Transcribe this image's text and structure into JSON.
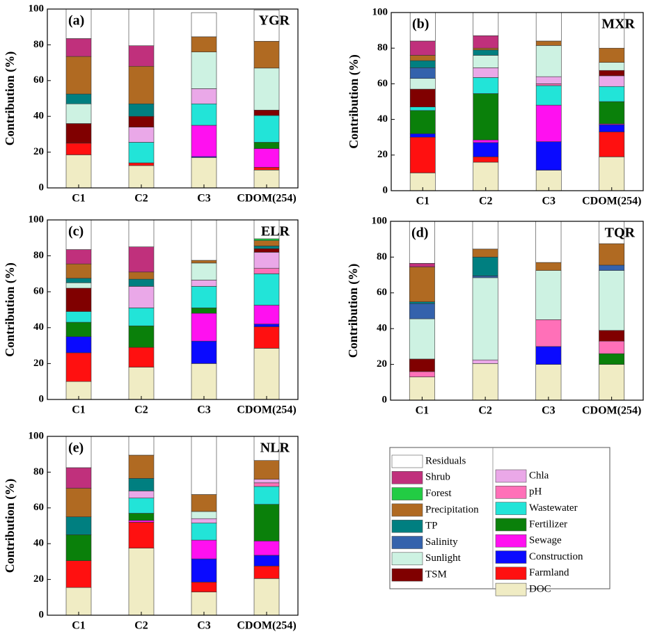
{
  "chart_data": [
    {
      "type": "bar",
      "stacked": true,
      "label": "(a)",
      "title": "YGR",
      "ylabel": "Contribution (%)",
      "categories": [
        "C1",
        "C2",
        "C3",
        "CDOM(254)"
      ],
      "ylim": [
        0,
        100
      ],
      "yticks": [
        0,
        20,
        40,
        60,
        80,
        100
      ],
      "series": [
        {
          "values": [
            18.5,
            12.5,
            17,
            10
          ]
        },
        {
          "values": [
            6.5,
            1.5,
            0,
            1.5
          ]
        },
        {
          "values": [
            0,
            0,
            0.5,
            0
          ]
        },
        {
          "values": [
            0,
            0,
            17.5,
            10.5
          ]
        },
        {
          "values": [
            0,
            0,
            0,
            3.5
          ]
        },
        {
          "values": [
            0,
            11.5,
            12,
            15
          ]
        },
        {
          "values": [
            0,
            0,
            0,
            0
          ]
        },
        {
          "values": [
            0,
            8.5,
            8.5,
            0
          ]
        },
        {
          "values": [
            11,
            6,
            0,
            3
          ]
        },
        {
          "values": [
            11,
            0,
            20.5,
            23.5
          ]
        },
        {
          "values": [
            0,
            0,
            0,
            0
          ]
        },
        {
          "values": [
            5.5,
            7,
            0,
            0
          ]
        },
        {
          "values": [
            21,
            21,
            8.5,
            15
          ]
        },
        {
          "values": [
            0,
            0,
            0,
            0
          ]
        },
        {
          "values": [
            10,
            11.5,
            0,
            0
          ]
        },
        {
          "values": [
            16.5,
            20.5,
            13.5,
            17.5
          ]
        }
      ]
    },
    {
      "type": "bar",
      "stacked": true,
      "label": "(b)",
      "title": "MXR",
      "ylabel": "Contribution (%)",
      "categories": [
        "C1",
        "C2",
        "C3",
        "CDOM(254)"
      ],
      "ylim": [
        0,
        100
      ],
      "yticks": [
        0,
        20,
        40,
        60,
        80,
        100
      ],
      "series": [
        {
          "values": [
            10,
            16,
            11.5,
            19
          ]
        },
        {
          "values": [
            20,
            3,
            0,
            14
          ]
        },
        {
          "values": [
            2,
            8,
            16,
            4
          ]
        },
        {
          "values": [
            0,
            1.5,
            20.5,
            0.5
          ]
        },
        {
          "values": [
            13,
            26,
            0,
            12.5
          ]
        },
        {
          "values": [
            2,
            9,
            11,
            8.5
          ]
        },
        {
          "values": [
            0,
            0,
            1,
            0
          ]
        },
        {
          "values": [
            0,
            5.5,
            4,
            6
          ]
        },
        {
          "values": [
            10,
            0,
            0,
            3
          ]
        },
        {
          "values": [
            6,
            7,
            17.5,
            4.5
          ]
        },
        {
          "values": [
            6,
            0,
            0,
            0
          ]
        },
        {
          "values": [
            4,
            3,
            0,
            0
          ]
        },
        {
          "values": [
            3,
            1,
            2.5,
            8
          ]
        },
        {
          "values": [
            0,
            0,
            0,
            0
          ]
        },
        {
          "values": [
            8,
            7,
            0,
            0
          ]
        },
        {
          "values": [
            16,
            13,
            16,
            20
          ]
        }
      ]
    },
    {
      "type": "bar",
      "stacked": true,
      "label": "(c)",
      "title": "ELR",
      "ylabel": "Contribution (%)",
      "categories": [
        "C1",
        "C2",
        "C3",
        "CDOM(254)"
      ],
      "ylim": [
        0,
        100
      ],
      "yticks": [
        0,
        20,
        40,
        60,
        80,
        100
      ],
      "series": [
        {
          "values": [
            10,
            18,
            20,
            28.5
          ]
        },
        {
          "values": [
            16,
            11,
            0,
            12
          ]
        },
        {
          "values": [
            9,
            0,
            12.5,
            1.5
          ]
        },
        {
          "values": [
            0,
            0,
            15.5,
            10.5
          ]
        },
        {
          "values": [
            8,
            12,
            3,
            0
          ]
        },
        {
          "values": [
            6,
            10,
            12,
            17.5
          ]
        },
        {
          "values": [
            0,
            0,
            0,
            3
          ]
        },
        {
          "values": [
            0,
            12,
            3.5,
            9
          ]
        },
        {
          "values": [
            13,
            0,
            0,
            2
          ]
        },
        {
          "values": [
            3,
            0,
            9.5,
            0
          ]
        },
        {
          "values": [
            0,
            0,
            0,
            0
          ]
        },
        {
          "values": [
            2.5,
            4,
            0,
            1.5
          ]
        },
        {
          "values": [
            8,
            4,
            1.5,
            3
          ]
        },
        {
          "values": [
            0,
            0,
            0,
            1
          ]
        },
        {
          "values": [
            8,
            14,
            0,
            0
          ]
        },
        {
          "values": [
            16.5,
            15,
            22.5,
            10.5
          ]
        }
      ]
    },
    {
      "type": "bar",
      "stacked": true,
      "label": "(d)",
      "title": "TQR",
      "ylabel": "Contribution (%)",
      "categories": [
        "C1",
        "C2",
        "C3",
        "CDOM(254)"
      ],
      "ylim": [
        0,
        100
      ],
      "yticks": [
        0,
        20,
        40,
        60,
        80,
        100
      ],
      "series": [
        {
          "values": [
            13,
            20.5,
            20,
            20
          ]
        },
        {
          "values": [
            0,
            0,
            0,
            0
          ]
        },
        {
          "values": [
            0,
            0,
            10,
            0
          ]
        },
        {
          "values": [
            0,
            0,
            0,
            0
          ]
        },
        {
          "values": [
            0,
            0,
            0,
            6
          ]
        },
        {
          "values": [
            0,
            0,
            0,
            0
          ]
        },
        {
          "values": [
            3,
            0,
            15,
            7
          ]
        },
        {
          "values": [
            0,
            2,
            0,
            0
          ]
        },
        {
          "values": [
            7,
            0,
            0,
            6
          ]
        },
        {
          "values": [
            22.5,
            46,
            27.5,
            33.5
          ]
        },
        {
          "values": [
            8.5,
            1,
            0,
            3
          ]
        },
        {
          "values": [
            1,
            10.5,
            0,
            0
          ]
        },
        {
          "values": [
            19.5,
            4.5,
            4.5,
            12
          ]
        },
        {
          "values": [
            0,
            0,
            0,
            0
          ]
        },
        {
          "values": [
            2,
            0,
            0,
            0
          ]
        },
        {
          "values": [
            23.5,
            15.5,
            23,
            12.5
          ]
        }
      ]
    },
    {
      "type": "bar",
      "stacked": true,
      "label": "(e)",
      "title": "NLR",
      "ylabel": "Contribution (%)",
      "categories": [
        "C1",
        "C2",
        "C3",
        "CDOM(254)"
      ],
      "ylim": [
        0,
        100
      ],
      "yticks": [
        0,
        20,
        40,
        60,
        80,
        100
      ],
      "series": [
        {
          "values": [
            15.5,
            37.5,
            13,
            20.5
          ]
        },
        {
          "values": [
            15,
            14.5,
            5.5,
            7
          ]
        },
        {
          "values": [
            0,
            0,
            13,
            6
          ]
        },
        {
          "values": [
            0,
            1,
            10.5,
            8
          ]
        },
        {
          "values": [
            14.5,
            4,
            0,
            20.5
          ]
        },
        {
          "values": [
            0,
            8.5,
            9.5,
            10
          ]
        },
        {
          "values": [
            0,
            0,
            0,
            2
          ]
        },
        {
          "values": [
            0,
            4,
            2.5,
            2
          ]
        },
        {
          "values": [
            0,
            0,
            0,
            0
          ]
        },
        {
          "values": [
            0,
            0,
            4,
            0
          ]
        },
        {
          "values": [
            0,
            0,
            0,
            0
          ]
        },
        {
          "values": [
            10,
            7,
            0,
            0
          ]
        },
        {
          "values": [
            16,
            13,
            9.5,
            10.5
          ]
        },
        {
          "values": [
            0,
            0,
            0,
            0
          ]
        },
        {
          "values": [
            11.5,
            0,
            0,
            0
          ]
        },
        {
          "values": [
            17.5,
            10.5,
            32.5,
            13.5
          ]
        }
      ]
    }
  ],
  "legend": [
    {
      "name": "DOC",
      "color": "#f0ecc4"
    },
    {
      "name": "Farmland",
      "color": "#ff1010"
    },
    {
      "name": "Construction",
      "color": "#0a0aff"
    },
    {
      "name": "Sewage",
      "color": "#ff10f0"
    },
    {
      "name": "Fertilizer",
      "color": "#0a800a"
    },
    {
      "name": "Wastewater",
      "color": "#22e4d8"
    },
    {
      "name": "pH",
      "color": "#ff70b8"
    },
    {
      "name": "Chla",
      "color": "#eaa8e8"
    },
    {
      "name": "TSM",
      "color": "#800000"
    },
    {
      "name": "Sunlight",
      "color": "#cdf2e2"
    },
    {
      "name": "Salinity",
      "color": "#3462ac"
    },
    {
      "name": "TP",
      "color": "#007f80"
    },
    {
      "name": "Precipitation",
      "color": "#b06a22"
    },
    {
      "name": "Forest",
      "color": "#22cc44"
    },
    {
      "name": "Shrub",
      "color": "#c0307c"
    },
    {
      "name": "Residuals",
      "color": "#ffffff"
    }
  ]
}
